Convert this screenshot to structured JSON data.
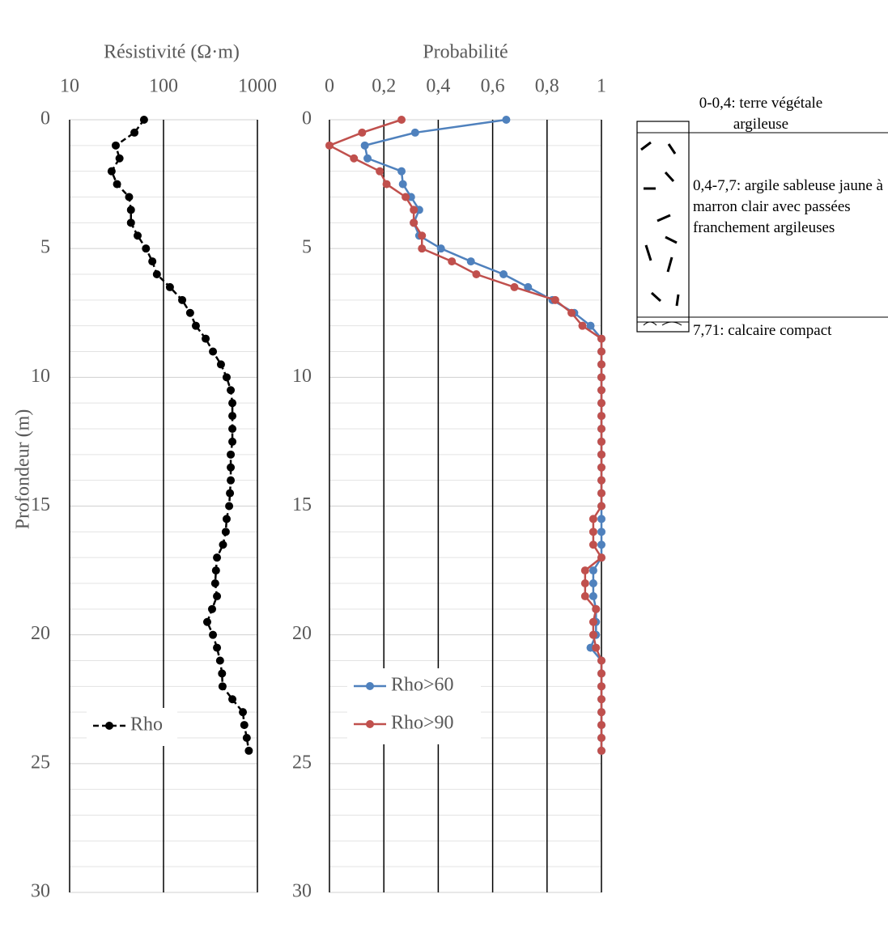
{
  "chart_data": [
    {
      "type": "line",
      "title": "Résistivité (Ω·m)",
      "y_label": "Profondeur (m)",
      "xscale": "log",
      "xlim": [
        10,
        1000
      ],
      "xticks": [
        10,
        100,
        1000
      ],
      "ylim": [
        0,
        30
      ],
      "y_reversed": true,
      "yticks": [
        0,
        5,
        10,
        15,
        20,
        25,
        30
      ],
      "grid": true,
      "legend": "lower left",
      "depth": [
        0,
        0.5,
        1,
        1.5,
        2,
        2.5,
        3,
        3.5,
        4,
        4.5,
        5,
        5.5,
        6,
        6.5,
        7,
        7.5,
        8,
        8.5,
        9,
        9.5,
        10,
        10.5,
        11,
        11.5,
        12,
        12.5,
        13,
        13.5,
        14,
        14.5,
        15,
        15.5,
        16,
        16.5,
        17,
        17.5,
        18,
        18.5,
        19,
        19.5,
        20,
        20.5,
        21,
        21.5,
        22,
        22.5,
        23,
        23.5,
        24,
        24.5
      ],
      "series": [
        {
          "name": "Rho",
          "color": "#000000",
          "line_style": "dashed",
          "values": [
            62,
            49,
            31,
            34,
            28,
            32,
            43,
            45,
            45,
            53,
            65,
            76,
            85,
            117,
            158,
            192,
            221,
            281,
            336,
            409,
            470,
            520,
            541,
            541,
            541,
            541,
            520,
            520,
            520,
            510,
            500,
            470,
            460,
            430,
            371,
            362,
            355,
            371,
            329,
            292,
            336,
            371,
            400,
            420,
            425,
            541,
            700,
            725,
            770,
            810
          ]
        }
      ]
    },
    {
      "type": "line",
      "title": "Probabilité",
      "xscale": "linear",
      "xlim": [
        0,
        1
      ],
      "xticks": [
        0,
        {
          "value": 0.2,
          "label": "0,2"
        },
        {
          "value": 0.4,
          "label": "0,4"
        },
        {
          "value": 0.6,
          "label": "0,6"
        },
        {
          "value": 0.8,
          "label": "0,8"
        },
        1
      ],
      "ylim": [
        0,
        30
      ],
      "y_reversed": true,
      "yticks": [
        0,
        5,
        10,
        15,
        20,
        25,
        30
      ],
      "grid": true,
      "legend": "lower left",
      "depth": [
        0,
        0.5,
        1,
        1.5,
        2,
        2.5,
        3,
        3.5,
        4,
        4.5,
        5,
        5.5,
        6,
        6.5,
        7,
        7.5,
        8,
        8.5,
        9,
        9.5,
        10,
        10.5,
        11,
        11.5,
        12,
        12.5,
        13,
        13.5,
        14,
        14.5,
        15,
        15.5,
        16,
        16.5,
        17,
        17.5,
        18,
        18.5,
        19,
        19.5,
        20,
        20.5,
        21,
        21.5,
        22,
        22.5,
        23,
        23.5,
        24,
        24.5
      ],
      "series": [
        {
          "name": "Rho>60",
          "color": "#4f81bd",
          "line_style": "solid",
          "values": [
            0.65,
            0.315,
            0.13,
            0.14,
            0.265,
            0.27,
            0.3,
            0.33,
            0.31,
            0.33,
            0.41,
            0.52,
            0.64,
            0.73,
            0.82,
            0.9,
            0.96,
            1,
            1,
            1,
            1,
            1,
            1,
            1,
            1,
            1,
            1,
            1,
            1,
            1,
            1,
            1,
            1,
            1,
            1,
            0.97,
            0.97,
            0.97,
            0.98,
            0.98,
            0.98,
            0.96,
            1,
            1,
            1,
            1,
            1,
            1,
            1,
            1
          ]
        },
        {
          "name": "Rho>90",
          "color": "#c0504d",
          "line_style": "solid",
          "values": [
            0.265,
            0.12,
            0,
            0.09,
            0.185,
            0.21,
            0.28,
            0.31,
            0.31,
            0.34,
            0.34,
            0.45,
            0.54,
            0.68,
            0.83,
            0.89,
            0.93,
            1,
            1,
            1,
            1,
            1,
            1,
            1,
            1,
            1,
            1,
            1,
            1,
            1,
            1,
            0.97,
            0.97,
            0.97,
            1,
            0.94,
            0.94,
            0.94,
            0.98,
            0.97,
            0.97,
            0.98,
            1,
            1,
            1,
            1,
            1,
            1,
            1,
            1
          ]
        }
      ]
    }
  ],
  "lithology": {
    "layers": [
      {
        "label": "0-0,4: terre végétale argileuse"
      },
      {
        "label": "0,4-7,7: argile sableuse jaune à marron clair avec passées franchement argileuses"
      },
      {
        "label": "7,71: calcaire compact"
      }
    ]
  }
}
